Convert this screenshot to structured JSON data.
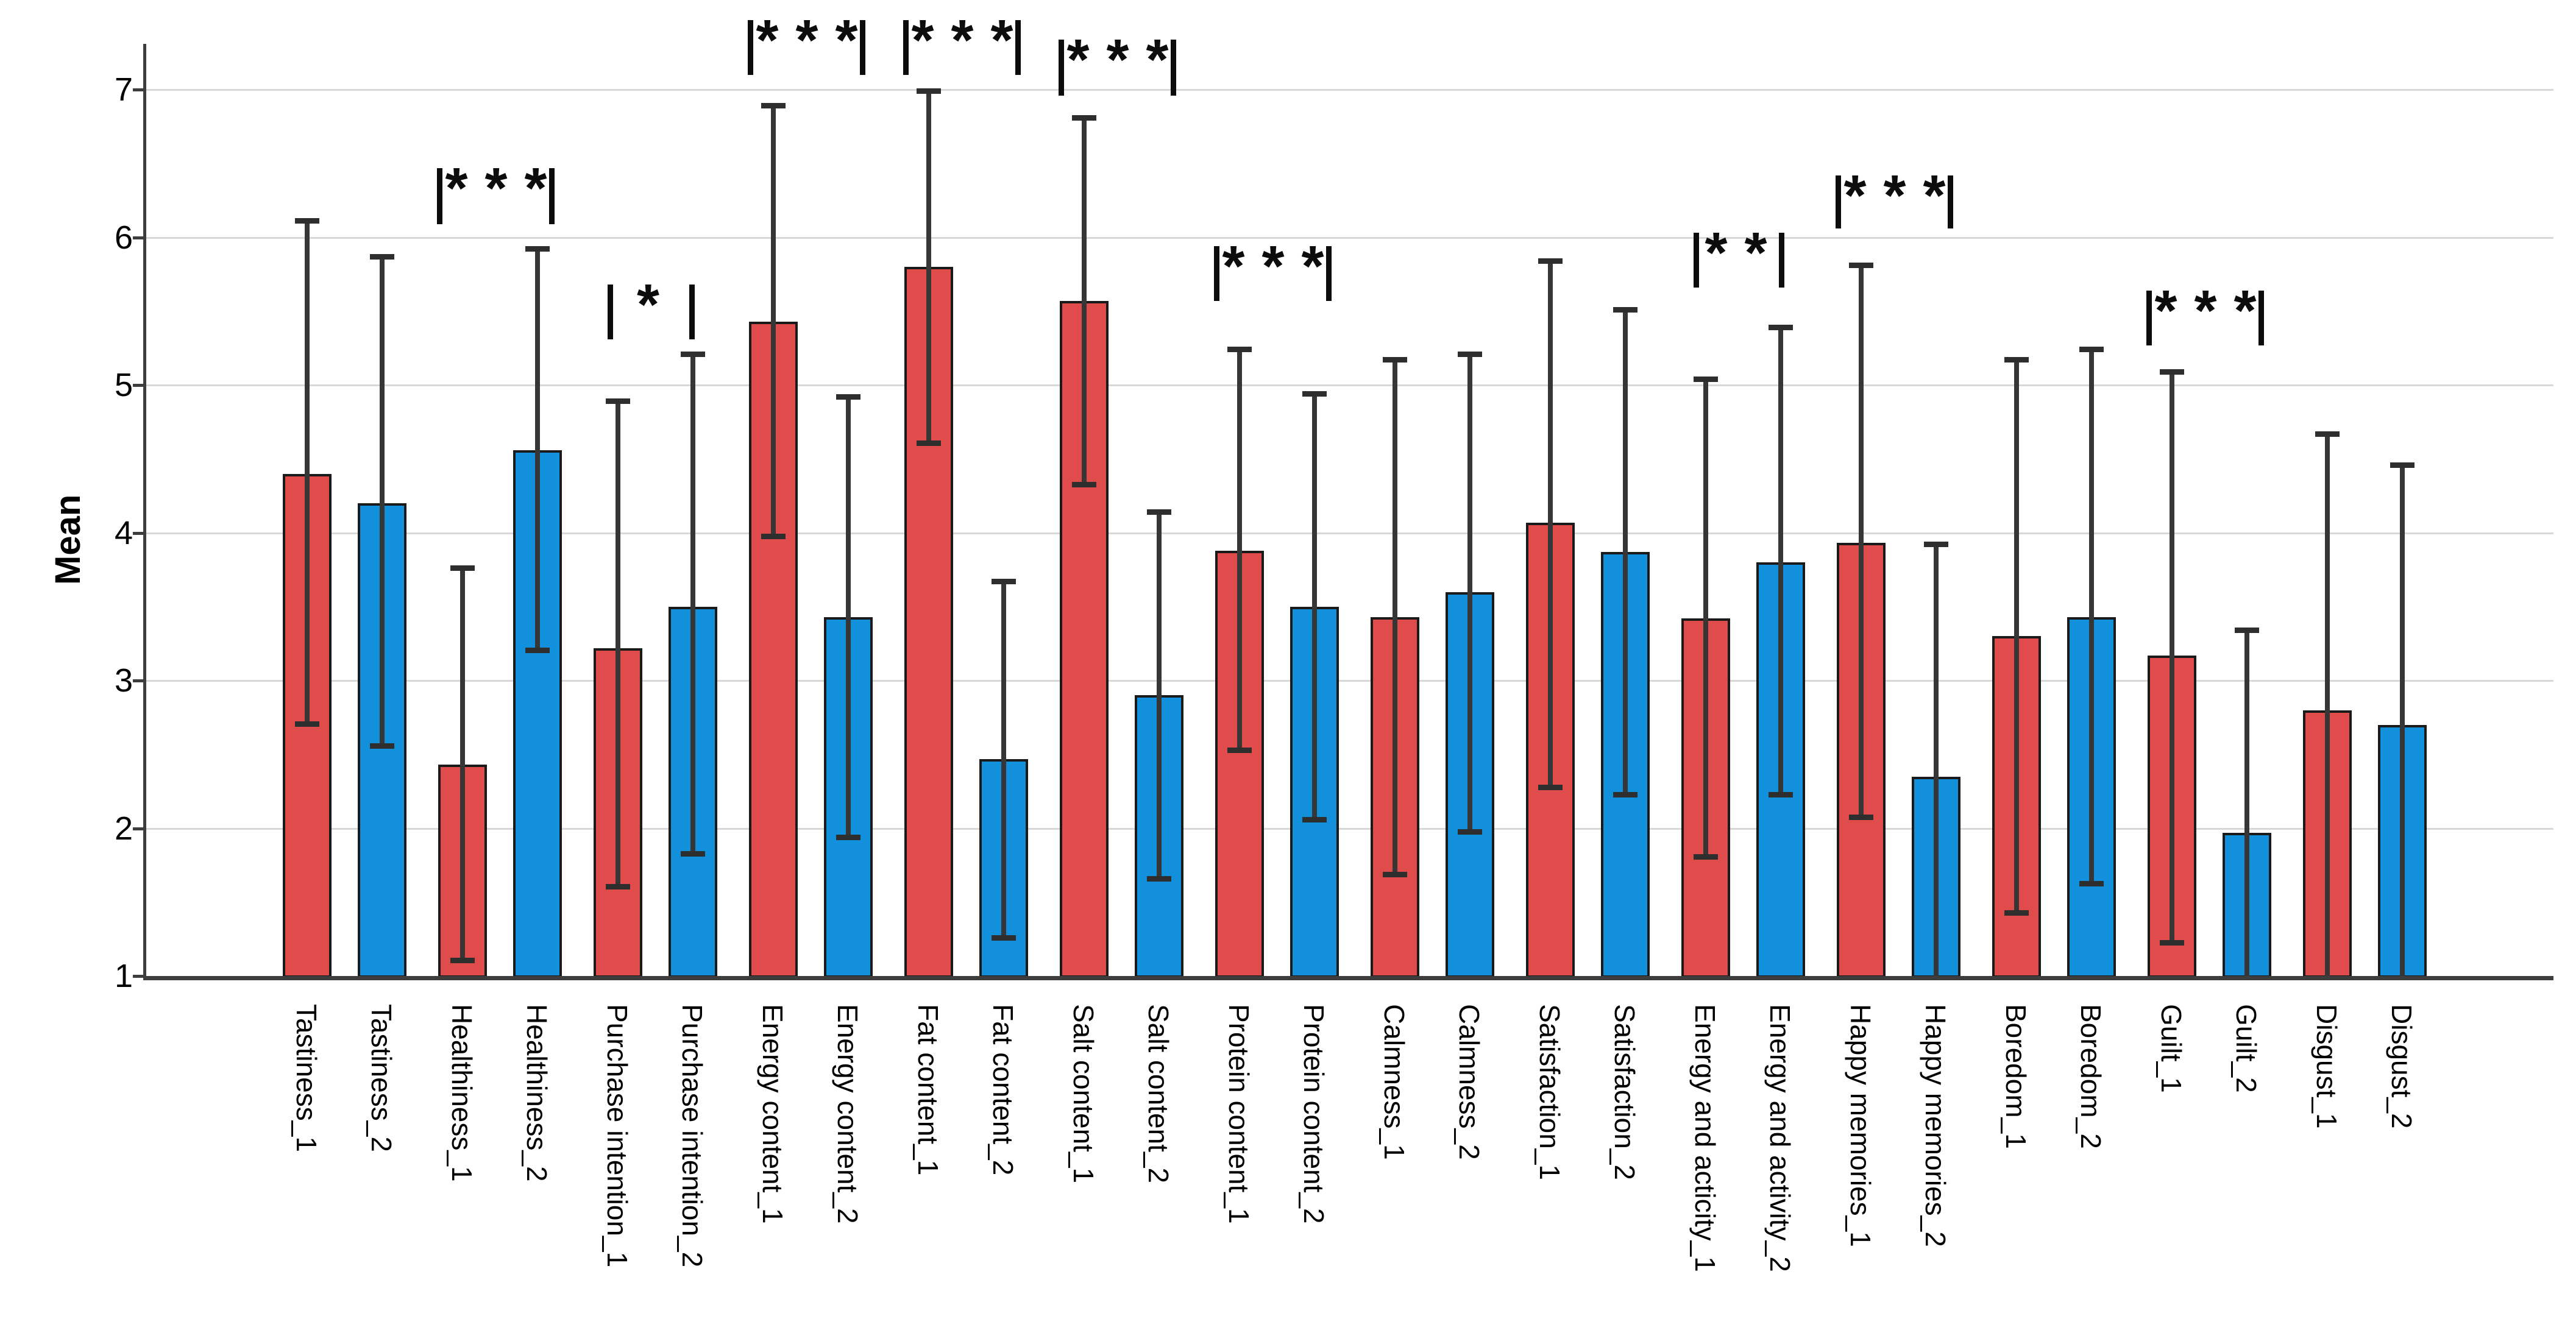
{
  "chart_data": {
    "type": "bar",
    "title": "",
    "xlabel": "",
    "ylabel": "Mean",
    "ylim": [
      1,
      7.5
    ],
    "yticks": [
      1,
      2,
      3,
      4,
      5,
      6,
      7
    ],
    "grid": "horizontal",
    "legend_position": "none",
    "colors": {
      "series_1": "#e04c4c",
      "series_2": "#1290dc"
    },
    "categories": [
      "Tastiness_1",
      "Tastiness_2",
      "Healthiness_1",
      "Healthiness_2",
      "Purchase intention_1",
      "Purchase intention_2",
      "Energy content_1",
      "Energy content_2",
      "Fat content_1",
      "Fat content_2",
      "Salt content_1",
      "Salt content_2",
      "Protein content_1",
      "Protein content_2",
      "Calmness_1",
      "Calmness_2",
      "Satisfaction_1",
      "Satisfaction_2",
      "Energy and acticity_1",
      "Energy and activity_2",
      "Happy memories_1",
      "Happy memories_2",
      "Boredom_1",
      "Boredom_2",
      "Guilt_1",
      "Guilt_2",
      "Disgust_1",
      "Disgust_2"
    ],
    "bars": [
      {
        "label": "Tastiness_1",
        "color": "series_1",
        "mean": 4.4,
        "err_lo": 2.7,
        "err_hi": 6.12
      },
      {
        "label": "Tastiness_2",
        "color": "series_2",
        "mean": 4.2,
        "err_lo": 2.55,
        "err_hi": 5.88
      },
      {
        "label": "Healthiness_1",
        "color": "series_1",
        "mean": 2.43,
        "err_lo": 1.1,
        "err_hi": 3.77
      },
      {
        "label": "Healthiness_2",
        "color": "series_2",
        "mean": 4.56,
        "err_lo": 3.2,
        "err_hi": 5.93
      },
      {
        "label": "Purchase intention_1",
        "color": "series_1",
        "mean": 3.22,
        "err_lo": 1.6,
        "err_hi": 4.9
      },
      {
        "label": "Purchase intention_2",
        "color": "series_2",
        "mean": 3.5,
        "err_lo": 1.82,
        "err_hi": 5.22
      },
      {
        "label": "Energy content_1",
        "color": "series_1",
        "mean": 5.43,
        "err_lo": 3.97,
        "err_hi": 6.9
      },
      {
        "label": "Energy content_2",
        "color": "series_2",
        "mean": 3.43,
        "err_lo": 1.93,
        "err_hi": 4.93
      },
      {
        "label": "Fat content_1",
        "color": "series_1",
        "mean": 5.8,
        "err_lo": 4.6,
        "err_hi": 7.0
      },
      {
        "label": "Fat content_2",
        "color": "series_2",
        "mean": 2.47,
        "err_lo": 1.25,
        "err_hi": 3.68
      },
      {
        "label": "Salt content_1",
        "color": "series_1",
        "mean": 5.57,
        "err_lo": 4.32,
        "err_hi": 6.82
      },
      {
        "label": "Salt content_2",
        "color": "series_2",
        "mean": 2.9,
        "err_lo": 1.65,
        "err_hi": 4.15
      },
      {
        "label": "Protein content_1",
        "color": "series_1",
        "mean": 3.88,
        "err_lo": 2.52,
        "err_hi": 5.25
      },
      {
        "label": "Protein content_2",
        "color": "series_2",
        "mean": 3.5,
        "err_lo": 2.05,
        "err_hi": 4.95
      },
      {
        "label": "Calmness_1",
        "color": "series_1",
        "mean": 3.43,
        "err_lo": 1.68,
        "err_hi": 5.18
      },
      {
        "label": "Calmness_2",
        "color": "series_2",
        "mean": 3.6,
        "err_lo": 1.97,
        "err_hi": 5.22
      },
      {
        "label": "Satisfaction_1",
        "color": "series_1",
        "mean": 4.07,
        "err_lo": 2.27,
        "err_hi": 5.85
      },
      {
        "label": "Satisfaction_2",
        "color": "series_2",
        "mean": 3.87,
        "err_lo": 2.22,
        "err_hi": 5.52
      },
      {
        "label": "Energy and acticity_1",
        "color": "series_1",
        "mean": 3.42,
        "err_lo": 1.8,
        "err_hi": 5.05
      },
      {
        "label": "Energy and activity_2",
        "color": "series_2",
        "mean": 3.8,
        "err_lo": 2.22,
        "err_hi": 5.4
      },
      {
        "label": "Happy memories_1",
        "color": "series_1",
        "mean": 3.93,
        "err_lo": 2.07,
        "err_hi": 5.82
      },
      {
        "label": "Happy memories_2",
        "color": "series_2",
        "mean": 2.35,
        "err_lo": null,
        "err_hi": 3.93
      },
      {
        "label": "Boredom_1",
        "color": "series_1",
        "mean": 3.3,
        "err_lo": 1.42,
        "err_hi": 5.18
      },
      {
        "label": "Boredom_2",
        "color": "series_2",
        "mean": 3.43,
        "err_lo": 1.62,
        "err_hi": 5.25
      },
      {
        "label": "Guilt_1",
        "color": "series_1",
        "mean": 3.17,
        "err_lo": 1.22,
        "err_hi": 5.1
      },
      {
        "label": "Guilt_2",
        "color": "series_2",
        "mean": 1.97,
        "err_lo": null,
        "err_hi": 3.35
      },
      {
        "label": "Disgust_1",
        "color": "series_1",
        "mean": 2.8,
        "err_lo": null,
        "err_hi": 4.68
      },
      {
        "label": "Disgust_2",
        "color": "series_2",
        "mean": 2.7,
        "err_lo": null,
        "err_hi": 4.47
      }
    ],
    "significance": [
      {
        "between": [
          "Healthiness_1",
          "Healthiness_2"
        ],
        "stars": "***",
        "span": [
          6.09,
          6.47
        ]
      },
      {
        "between": [
          "Purchase intention_1",
          "Purchase intention_2"
        ],
        "stars": "*",
        "span": [
          5.31,
          5.68
        ]
      },
      {
        "between": [
          "Energy content_1",
          "Energy content_2"
        ],
        "stars": "***",
        "span": [
          7.1,
          7.47
        ]
      },
      {
        "between": [
          "Fat content_1",
          "Fat content_2"
        ],
        "stars": "***",
        "span": [
          7.1,
          7.47
        ]
      },
      {
        "between": [
          "Salt content_1",
          "Salt content_2"
        ],
        "stars": "***",
        "span": [
          6.96,
          7.34
        ]
      },
      {
        "between": [
          "Protein content_1",
          "Protein content_2"
        ],
        "stars": "***",
        "span": [
          5.57,
          5.94
        ]
      },
      {
        "between": [
          "Energy and acticity_1",
          "Energy and activity_2"
        ],
        "stars": "**",
        "span": [
          5.66,
          6.03
        ]
      },
      {
        "between": [
          "Happy memories_1",
          "Happy memories_2"
        ],
        "stars": "***",
        "span": [
          6.06,
          6.42
        ]
      },
      {
        "between": [
          "Guilt_1",
          "Guilt_2"
        ],
        "stars": "***",
        "span": [
          5.27,
          5.64
        ]
      }
    ]
  }
}
